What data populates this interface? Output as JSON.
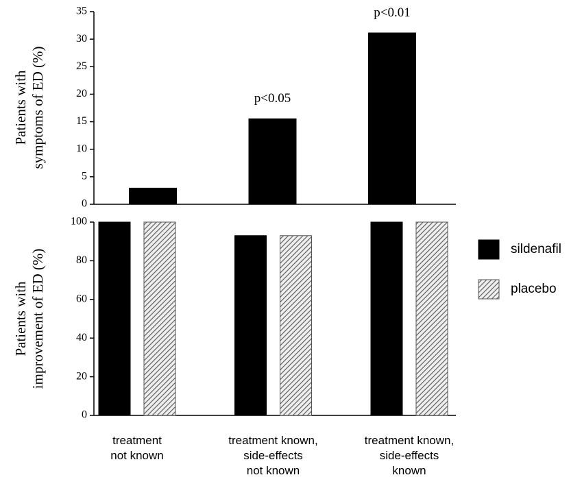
{
  "chart_data": [
    {
      "type": "bar",
      "ylabel": "Patients with\nsymptoms of ED (%)",
      "values": [
        3,
        15.6,
        31.2
      ],
      "color": "#000000",
      "value_annotations": [
        null,
        "p<0.05",
        "p<0.01"
      ],
      "ylim": [
        0,
        35
      ],
      "yticks": [
        0,
        5,
        10,
        15,
        20,
        25,
        30,
        35
      ]
    },
    {
      "type": "grouped_bar",
      "ylabel": "Patients with\nimprovement of ED (%)",
      "categories": [
        "treatment\nnot known",
        "treatment known,\nside-effects\nnot known",
        "treatment known,\nside-effects\nknown"
      ],
      "series": [
        {
          "name": "sildenafil",
          "color": "#000000",
          "values": [
            100,
            93,
            100
          ]
        },
        {
          "name": "placebo",
          "color": "#555555",
          "pattern": "hatch",
          "values": [
            100,
            93,
            100
          ]
        }
      ],
      "ylim": [
        0,
        100
      ],
      "yticks": [
        0,
        20,
        40,
        60,
        80,
        100
      ],
      "legend": "right"
    }
  ]
}
